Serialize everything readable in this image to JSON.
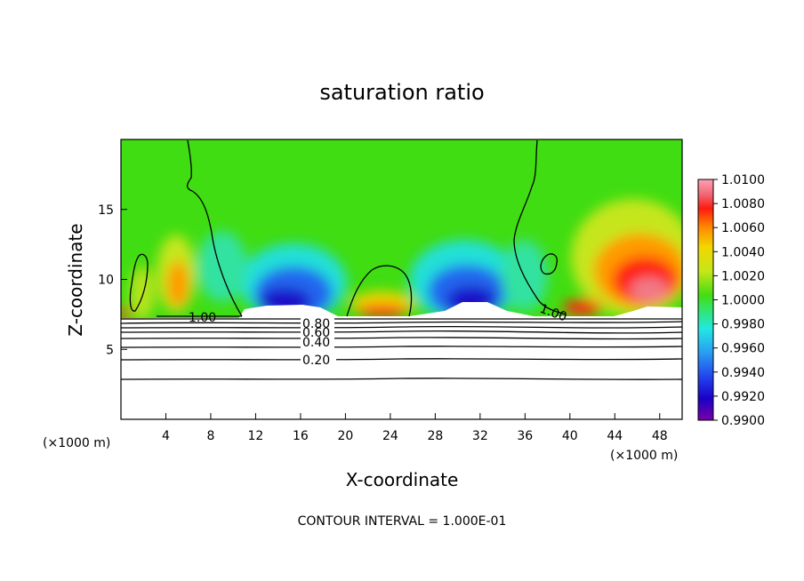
{
  "chart_data": {
    "type": "heatmap",
    "title": "saturation ratio",
    "xlabel": "X-coordinate",
    "ylabel": "Z-coordinate",
    "x_unit_left": "(×1000 m)",
    "x_unit_right": "(×1000 m)",
    "footer": "CONTOUR INTERVAL = 1.000E-01",
    "xlim": [
      0,
      50
    ],
    "ylim": [
      0,
      20
    ],
    "x_ticks": [
      "4",
      "8",
      "12",
      "16",
      "20",
      "24",
      "28",
      "32",
      "36",
      "40",
      "44",
      "48"
    ],
    "y_ticks": [
      "5",
      "10",
      "15"
    ],
    "colorbar": {
      "range": [
        0.99,
        1.01
      ],
      "labels": [
        "1.0100",
        "1.0080",
        "1.0060",
        "1.0040",
        "1.0020",
        "1.0000",
        "0.9980",
        "0.9960",
        "0.9940",
        "0.9920",
        "0.9900"
      ],
      "colors": [
        "#7a00a8",
        "#1a00c8",
        "#2244ee",
        "#2a9cf2",
        "#22e8e2",
        "#2fe66a",
        "#44dd11",
        "#c6e61a",
        "#f2d600",
        "#ff8a00",
        "#ff1a10",
        "#f06a78",
        "#ffa0b4"
      ]
    },
    "contour_labels": [
      "1.00",
      "1.00",
      "0.80",
      "0.60",
      "0.40",
      "0.20"
    ]
  }
}
